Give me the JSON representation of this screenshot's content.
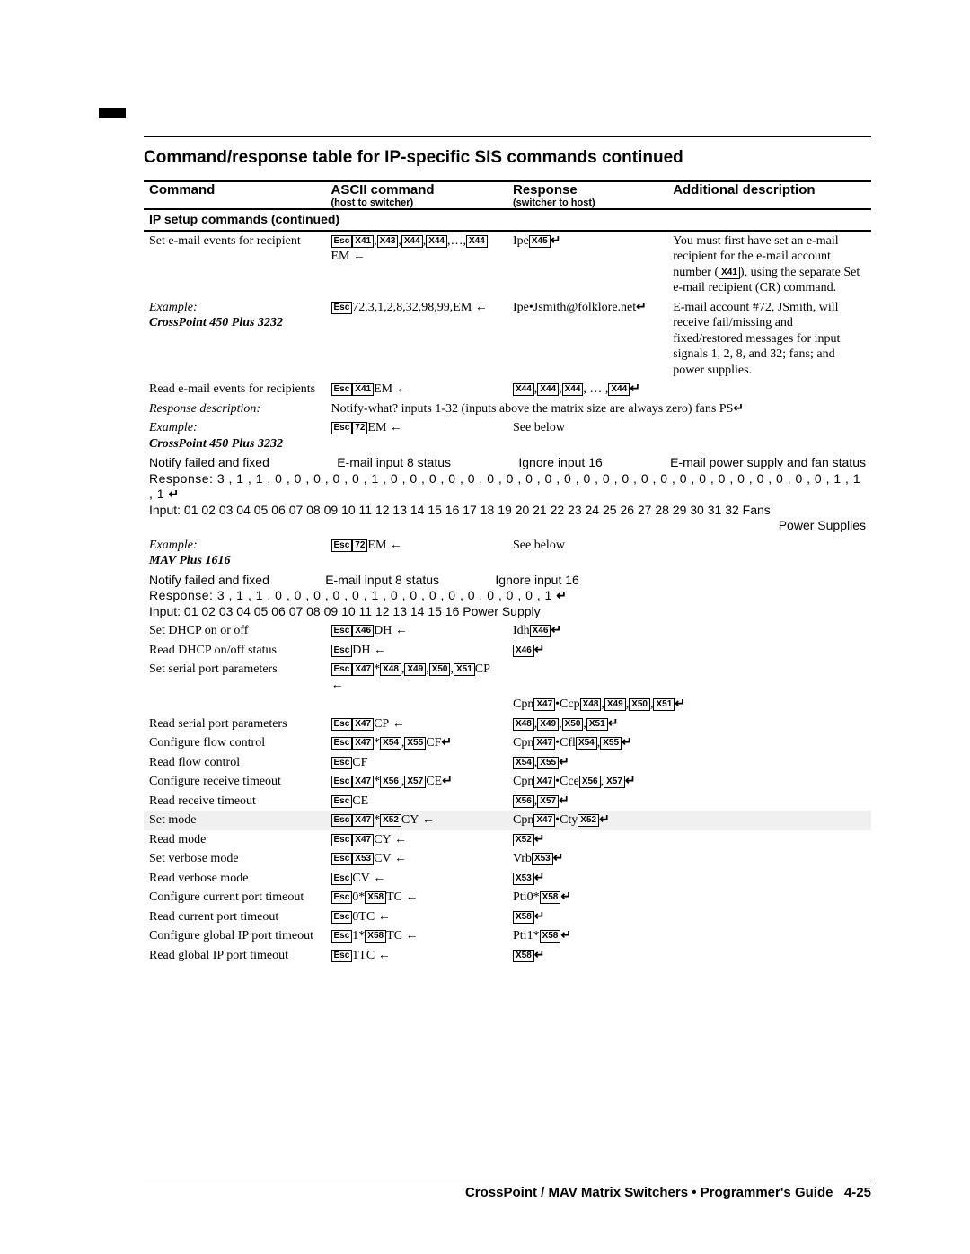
{
  "title": "Command/response table for IP-specific SIS commands continued",
  "columns": {
    "c1": "Command",
    "c2": "ASCII command",
    "c2sub": "(host to switcher)",
    "c3": "Response",
    "c3sub": "(switcher to host)",
    "c4": "Additional description"
  },
  "section": "IP setup commands (continued)",
  "rows": {
    "r1_cmd": "Set e-mail events for recipient",
    "r1_resp_pre": "Ipe",
    "r1_desc": "You must first have set an e-mail recipient for the e-mail account number (X41), using the separate Set e-mail recipient (CR) command.",
    "r2_ex_label": "Example:",
    "r2_ex_model": "CrossPoint 450 Plus 3232",
    "r2_ascii": "72,3,1,2,8,32,98,99,EM",
    "r2_resp": "Ipe•Jsmith@folklore.net",
    "r2_desc": "E-mail account #72, JSmith, will receive fail/missing and fixed/restored messages for input signals 1, 2, 8, and 32; fans; and power supplies.",
    "r3_cmd": "Read e-mail events for recipients",
    "r3_ascii_suffix": "EM",
    "r4_respdesc_label": "Response description:",
    "r4_respdesc_text": "Notify-what? inputs 1-32 (inputs above the matrix size are always zero) fans PS",
    "r5_ex_label": "Example:",
    "r5_ex_model": "CrossPoint 450 Plus 3232",
    "r5_ascii_pre": "72",
    "r5_see": "See below",
    "diagA_labels": [
      "Notify failed and fixed",
      "E-mail input 8 status",
      "Ignore input 16",
      "E-mail power supply and fan status"
    ],
    "diagA_response": "Response: 3 , 1 , 1 , 0 , 0 , 0 , 0 , 0 , 1 , 0 , 0 , 0 , 0 , 0 , 0 , 0 , 0 , 0 , 0 , 0 , 0 , 0 , 0 , 0 , 0 , 0 , 0 , 0 , 0 , 0 , 0 , 0 , 1 , 1 , 1",
    "diagA_inputs": "Input: 01 02 03 04 05 06 07 08 09 10 11 12 13 14 15 16 17 18 19 20 21 22 23 24 25 26 27 28 29 30 31 32   Fans",
    "diagA_ps": "Power Supplies",
    "r6_ex_label": "Example:",
    "r6_ex_model": "MAV Plus 1616",
    "r6_ascii_pre": "72",
    "r6_see": "See below",
    "diagB_labels": [
      "Notify failed and fixed",
      "E-mail input 8 status",
      "Ignore input 16"
    ],
    "diagB_response": "Response: 3 , 1 , 1 , 0 , 0 , 0 , 0 , 0 , 1 , 0 , 0 , 0 , 0 , 0 , 0 , 0 , 0 , 1",
    "diagB_inputs": "Input: 01 02 03 04 05 06 07 08 09 10 11 12 13 14 15 16  Power Supply",
    "simple": [
      {
        "cmd": "Set DHCP on or off",
        "a_tokens": [
          "Esc",
          "X46"
        ],
        "a_suffix": "DH",
        "a_arrow": true,
        "r_pre": "Idh",
        "r_tokens": [
          "X46"
        ]
      },
      {
        "cmd": "Read DHCP on/off status",
        "a_tokens": [
          "Esc"
        ],
        "a_suffix": "DH",
        "a_arrow": true,
        "r_tokens": [
          "X46"
        ]
      },
      {
        "cmd": "Set serial port parameters",
        "a_tokens": [
          "Esc",
          "X47",
          "*",
          "X48",
          ",",
          "X49",
          ",",
          "X50",
          ",",
          "X51"
        ],
        "a_suffix": "CP",
        "a_arrow": true,
        "r_pre": "Cpn",
        "r_tokens": [
          "X47",
          "•Ccp",
          "X48",
          ",",
          "X49",
          ",",
          "X50",
          ",",
          "X51"
        ],
        "two_line": true
      },
      {
        "cmd": "Read serial port parameters",
        "a_tokens": [
          "Esc",
          "X47"
        ],
        "a_suffix": "CP",
        "a_arrow": true,
        "r_tokens": [
          "X48",
          ",",
          "X49",
          ",",
          "X50",
          ",",
          "X51"
        ]
      },
      {
        "cmd": "Configure flow control",
        "a_tokens": [
          "Esc",
          "X47",
          "*",
          "X54",
          ",",
          "X55"
        ],
        "a_suffix": "CF",
        "a_ret": true,
        "r_pre": "Cpn",
        "r_tokens": [
          "X47",
          "•Cfl",
          "X54",
          ",",
          "X55"
        ]
      },
      {
        "cmd": "Read flow control",
        "a_tokens": [
          "Esc"
        ],
        "a_suffix": "CF",
        "r_tokens": [
          "X54",
          ",",
          "X55"
        ]
      },
      {
        "cmd": "Configure receive timeout",
        "a_tokens": [
          "Esc",
          "X47",
          "*",
          "X56",
          ",",
          "X57"
        ],
        "a_suffix": "CE",
        "a_ret": true,
        "r_pre": "Cpn",
        "r_tokens": [
          "X47",
          "•Cce",
          "X56",
          ",",
          "X57"
        ]
      },
      {
        "cmd": "Read receive timeout",
        "a_tokens": [
          "Esc"
        ],
        "a_suffix": "CE",
        "r_tokens": [
          "X56",
          ",",
          "X57"
        ]
      },
      {
        "cmd": "Set mode",
        "a_tokens": [
          "Esc",
          "X47",
          "*",
          "X52"
        ],
        "a_suffix": "CY",
        "a_arrow": true,
        "r_pre": "Cpn",
        "r_tokens": [
          "X47",
          "•Cty",
          "X52"
        ],
        "grey": true
      },
      {
        "cmd": "Read mode",
        "a_tokens": [
          "Esc",
          "X47"
        ],
        "a_suffix": "CY",
        "a_arrow": true,
        "r_tokens": [
          "X52"
        ]
      },
      {
        "cmd": "Set verbose mode",
        "a_tokens": [
          "Esc",
          "X53"
        ],
        "a_suffix": "CV",
        "a_arrow": true,
        "r_pre": "Vrb",
        "r_tokens": [
          "X53"
        ]
      },
      {
        "cmd": "Read verbose mode",
        "a_tokens": [
          "Esc"
        ],
        "a_suffix": "CV",
        "a_arrow": true,
        "r_tokens": [
          "X53"
        ]
      },
      {
        "cmd": "Configure current port timeout",
        "a_tokens": [
          "Esc",
          "0*",
          "X58"
        ],
        "a_suffix": "TC",
        "a_arrow": true,
        "r_pre": "Pti0*",
        "r_tokens": [
          "X58"
        ]
      },
      {
        "cmd": "Read current port timeout",
        "a_tokens": [
          "Esc"
        ],
        "a_suffix": "0TC",
        "a_arrow": true,
        "r_tokens": [
          "X58"
        ]
      },
      {
        "cmd": "Configure global IP port timeout",
        "a_tokens": [
          "Esc",
          "1*",
          "X58"
        ],
        "a_suffix": "TC",
        "a_arrow": true,
        "r_pre": "Pti1*",
        "r_tokens": [
          "X58"
        ]
      },
      {
        "cmd": "Read global IP port timeout",
        "a_tokens": [
          "Esc"
        ],
        "a_suffix": "1TC",
        "a_arrow": true,
        "r_tokens": [
          "X58"
        ]
      }
    ]
  },
  "footer_left": "CrossPoint / MAV Matrix Switchers • Programmer's Guide",
  "footer_right": "4-25",
  "colors": {
    "text": "#000000",
    "bg": "#ffffff",
    "grey_row": "#f0f0f0"
  }
}
